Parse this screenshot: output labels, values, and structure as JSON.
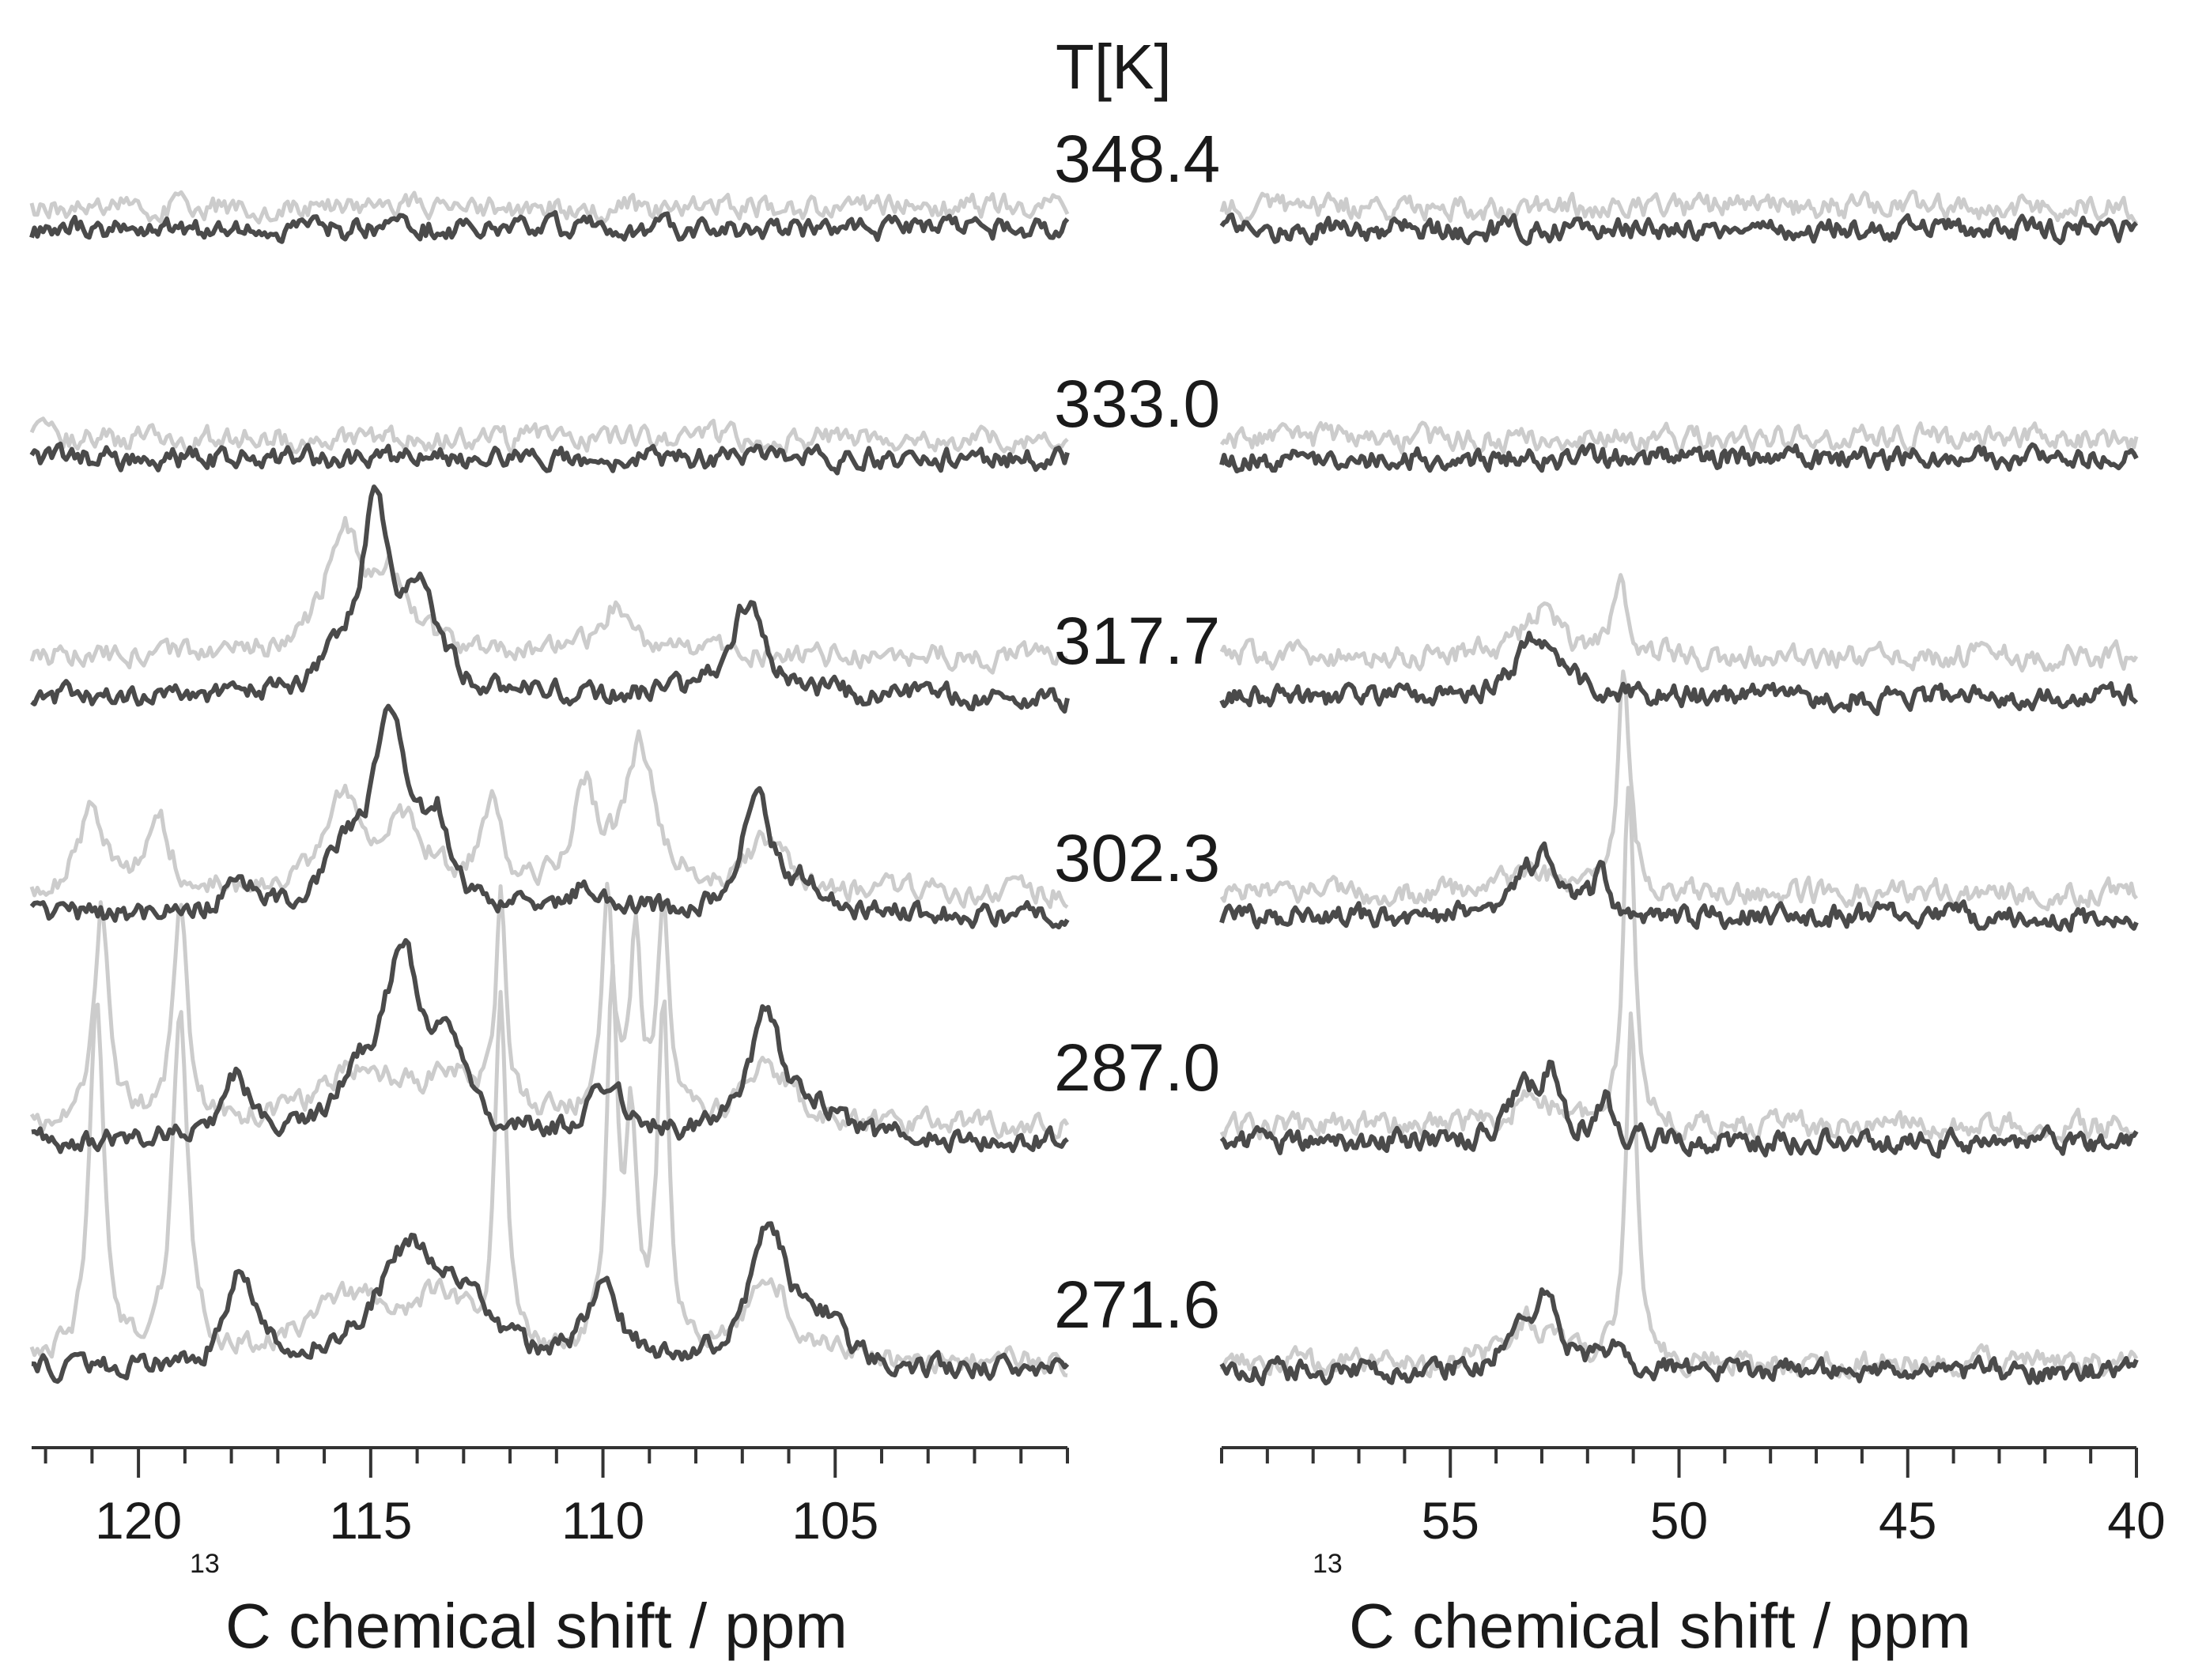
{
  "chart_data": [
    {
      "type": "line",
      "panel": "left",
      "title": "",
      "xlabel_sup": "13",
      "xlabel_text": "C chemical shift / ppm",
      "xlim": [
        122.3,
        100.0
      ],
      "x_reversed": true,
      "major_ticks": [
        120,
        115,
        110,
        105
      ],
      "tick_labels": [
        "120",
        "115",
        "110",
        "105"
      ],
      "minor_step": 1,
      "series_style": {
        "dark": "#4a4a4a",
        "light": "#cccccc"
      },
      "series": [
        {
          "name": "dark",
          "temperature": "271.6",
          "peaks": [
            [
              117.8,
              0.48,
              0.35
            ],
            [
              114.1,
              0.62,
              0.95
            ],
            [
              112.8,
              0.22,
              0.5
            ],
            [
              110.0,
              0.36,
              0.45
            ],
            [
              106.4,
              0.72,
              0.5
            ],
            [
              105.2,
              0.18,
              0.5
            ]
          ]
        },
        {
          "name": "light",
          "temperature": "271.6",
          "peaks": [
            [
              120.9,
              1.75,
              0.18
            ],
            [
              119.1,
              1.75,
              0.2
            ],
            [
              115.5,
              0.32,
              1.0
            ],
            [
              113.5,
              0.28,
              0.7
            ],
            [
              112.2,
              1.8,
              0.14
            ],
            [
              109.8,
              1.75,
              0.14
            ],
            [
              109.4,
              1.1,
              0.14
            ],
            [
              108.7,
              1.75,
              0.15
            ],
            [
              106.4,
              0.4,
              0.6
            ]
          ]
        },
        {
          "name": "dark",
          "temperature": "287.0",
          "peaks": [
            [
              117.9,
              0.32,
              0.35
            ],
            [
              114.3,
              0.88,
              0.45
            ],
            [
              113.3,
              0.45,
              0.4
            ],
            [
              115.2,
              0.25,
              0.7
            ],
            [
              109.9,
              0.28,
              0.45
            ],
            [
              106.5,
              0.62,
              0.45
            ],
            [
              105.4,
              0.13,
              0.5
            ]
          ]
        },
        {
          "name": "light",
          "temperature": "287.0",
          "peaks": [
            [
              120.8,
              1.1,
              0.18
            ],
            [
              119.1,
              1.1,
              0.18
            ],
            [
              115.2,
              0.28,
              1.0
            ],
            [
              113.2,
              0.2,
              0.8
            ],
            [
              112.2,
              1.05,
              0.13
            ],
            [
              109.9,
              1.1,
              0.15
            ],
            [
              109.3,
              0.9,
              0.13
            ],
            [
              108.7,
              1.05,
              0.15
            ],
            [
              106.4,
              0.28,
              0.6
            ]
          ]
        },
        {
          "name": "dark",
          "temperature": "302.3",
          "peaks": [
            [
              117.8,
              0.16,
              0.4
            ],
            [
              114.6,
              1.0,
              0.4
            ],
            [
              113.6,
              0.45,
              0.35
            ],
            [
              115.6,
              0.25,
              0.5
            ],
            [
              110.3,
              0.15,
              0.5
            ],
            [
              106.7,
              0.62,
              0.4
            ],
            [
              105.6,
              0.12,
              0.4
            ]
          ]
        },
        {
          "name": "light",
          "temperature": "302.3",
          "peaks": [
            [
              121.0,
              0.45,
              0.3
            ],
            [
              119.6,
              0.38,
              0.3
            ],
            [
              115.6,
              0.42,
              0.5
            ],
            [
              114.3,
              0.32,
              0.6
            ],
            [
              112.4,
              0.4,
              0.25
            ],
            [
              110.4,
              0.5,
              0.3
            ],
            [
              109.2,
              0.72,
              0.4
            ],
            [
              106.5,
              0.25,
              0.5
            ]
          ]
        },
        {
          "name": "dark",
          "temperature": "317.7",
          "peaks": [
            [
              114.9,
              1.0,
              0.35
            ],
            [
              113.9,
              0.48,
              0.45
            ],
            [
              115.7,
              0.15,
              0.3
            ],
            [
              106.9,
              0.48,
              0.45
            ]
          ]
        },
        {
          "name": "light",
          "temperature": "317.7",
          "peaks": [
            [
              115.6,
              0.62,
              0.45
            ],
            [
              114.6,
              0.35,
              0.5
            ],
            [
              109.7,
              0.25,
              0.35
            ],
            [
              108.4,
              0.08,
              0.4
            ]
          ]
        },
        {
          "name": "dark",
          "temperature": "333.0",
          "peaks": []
        },
        {
          "name": "light",
          "temperature": "333.0",
          "peaks": []
        },
        {
          "name": "dark",
          "temperature": "348.4",
          "peaks": []
        },
        {
          "name": "light",
          "temperature": "348.4",
          "peaks": []
        }
      ]
    },
    {
      "type": "line",
      "panel": "right",
      "title": "",
      "xlabel_sup": "13",
      "xlabel_text": "C chemical shift / ppm",
      "xlim": [
        60.0,
        40.0
      ],
      "x_reversed": true,
      "major_ticks": [
        55,
        50,
        45,
        40
      ],
      "tick_labels": [
        "55",
        "50",
        "45",
        "40"
      ],
      "minor_step": 1,
      "series_style": {
        "dark": "#4a4a4a",
        "light": "#cccccc"
      },
      "series": [
        {
          "name": "dark",
          "temperature": "271.6",
          "peaks": [
            [
              53.5,
              0.18,
              0.35
            ],
            [
              52.9,
              0.35,
              0.35
            ],
            [
              51.4,
              0.15,
              0.2
            ]
          ]
        },
        {
          "name": "light",
          "temperature": "271.6",
          "peaks": [
            [
              51.05,
              1.75,
              0.14
            ],
            [
              53.3,
              0.22,
              0.5
            ]
          ]
        },
        {
          "name": "dark",
          "temperature": "287.0",
          "peaks": [
            [
              53.4,
              0.25,
              0.35
            ],
            [
              52.8,
              0.32,
              0.25
            ],
            [
              51.6,
              0.22,
              0.2
            ]
          ]
        },
        {
          "name": "light",
          "temperature": "287.0",
          "peaks": [
            [
              51.1,
              1.75,
              0.14
            ],
            [
              53.2,
              0.15,
              0.5
            ]
          ]
        },
        {
          "name": "dark",
          "temperature": "302.3",
          "peaks": [
            [
              53.4,
              0.15,
              0.35
            ],
            [
              52.9,
              0.28,
              0.3
            ],
            [
              51.7,
              0.2,
              0.2
            ]
          ]
        },
        {
          "name": "light",
          "temperature": "302.3",
          "peaks": [
            [
              51.2,
              1.15,
              0.15
            ],
            [
              53.2,
              0.12,
              0.5
            ]
          ]
        },
        {
          "name": "dark",
          "temperature": "317.7",
          "peaks": [
            [
              53.2,
              0.25,
              0.45
            ],
            [
              52.5,
              0.1,
              0.4
            ]
          ]
        },
        {
          "name": "light",
          "temperature": "317.7",
          "peaks": [
            [
              51.3,
              0.38,
              0.15
            ],
            [
              53.0,
              0.22,
              0.5
            ]
          ]
        },
        {
          "name": "dark",
          "temperature": "333.0",
          "peaks": []
        },
        {
          "name": "light",
          "temperature": "333.0",
          "peaks": []
        },
        {
          "name": "dark",
          "temperature": "348.4",
          "peaks": []
        },
        {
          "name": "light",
          "temperature": "348.4",
          "peaks": []
        }
      ]
    }
  ],
  "temperature_header": "T[K]",
  "temperatures": [
    "348.4",
    "333.0",
    "317.7",
    "302.3",
    "287.0",
    "271.6"
  ]
}
